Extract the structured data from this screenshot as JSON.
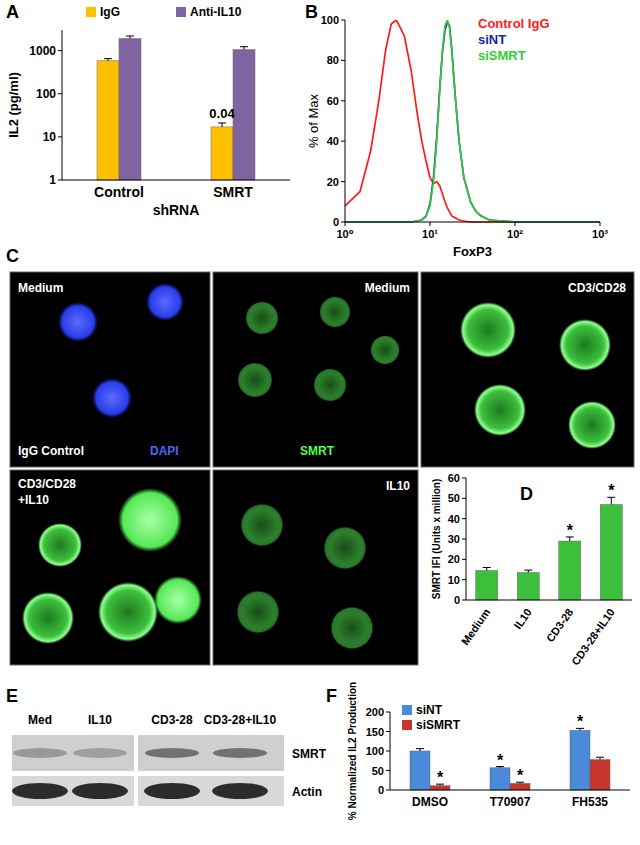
{
  "chart_data": [
    {
      "type": "bar",
      "title": "A",
      "categories": [
        "Control",
        "SMRT"
      ],
      "xlabel": "shRNA",
      "ylabel": "IL2 (pg/ml)",
      "series": [
        {
          "name": "IgG",
          "color": "#ffc000",
          "values": [
            580,
            17
          ],
          "errors": [
            70,
            4
          ]
        },
        {
          "name": "Anti-IL10",
          "color": "#8064a2",
          "values": [
            1900,
            1050
          ],
          "errors": [
            280,
            180
          ]
        }
      ],
      "log": "y",
      "ylim": [
        1,
        3000
      ],
      "yticks": [
        1,
        10,
        100,
        1000
      ],
      "legend": "top",
      "annotations": [
        {
          "series": 0,
          "index": 1,
          "text": "0.04"
        }
      ]
    },
    {
      "type": "line",
      "title": "B",
      "xlabel": "FoxP3",
      "ylabel": "% of Max",
      "x": [
        1,
        1.5,
        2,
        2.5,
        3,
        3.5,
        4,
        4.5,
        5,
        6,
        7,
        8,
        9,
        10,
        11,
        12,
        13,
        14,
        15,
        16,
        17,
        18,
        20,
        22,
        25,
        30,
        35,
        40,
        50,
        70,
        100,
        200,
        1000
      ],
      "series": [
        {
          "name": "Control IgG",
          "color": "#ff1a1a",
          "values": [
            8,
            15,
            35,
            60,
            85,
            98,
            100,
            96,
            92,
            75,
            55,
            40,
            30,
            22,
            19,
            20,
            18,
            14,
            10,
            7,
            5,
            3,
            2,
            1,
            0.5,
            0,
            0,
            0,
            0,
            0,
            0,
            0,
            0
          ]
        },
        {
          "name": "siNT",
          "color": "#1c1cb0",
          "values": [
            0,
            0,
            0,
            0,
            0,
            0,
            0,
            0,
            0,
            0,
            0.5,
            1,
            3,
            9,
            22,
            42,
            66,
            84,
            95,
            99,
            97,
            86,
            60,
            40,
            22,
            10,
            5,
            3,
            1,
            0.5,
            0,
            0,
            0
          ]
        },
        {
          "name": "siSMRT",
          "color": "#33cc33",
          "values": [
            0,
            0,
            0,
            0,
            0,
            0,
            0,
            0,
            0,
            0,
            0.5,
            1,
            3,
            8,
            20,
            40,
            65,
            85,
            97,
            100,
            96,
            85,
            60,
            40,
            22,
            10,
            5,
            3,
            1,
            0.5,
            0,
            0,
            0
          ]
        }
      ],
      "log": "x",
      "xlim": [
        1,
        1000
      ],
      "xticks": [
        {
          "value": 1,
          "label": "10⁰"
        },
        {
          "value": 10,
          "label": "10¹"
        },
        {
          "value": 100,
          "label": "10²"
        },
        {
          "value": 1000,
          "label": "10³"
        }
      ],
      "ylim": [
        0,
        100
      ],
      "yticks": [
        0,
        20,
        40,
        60,
        80,
        100
      ],
      "legend": "top-right"
    },
    {
      "type": "bar",
      "title": "D",
      "categories": [
        "Medium",
        "IL10",
        "CD3-28",
        "CD3-28+IL10"
      ],
      "values": [
        14.5,
        13.5,
        29,
        47
      ],
      "errors": [
        1.5,
        1.2,
        2,
        3.5
      ],
      "color": "#3cc03c",
      "ylabel": "SMRT IFI (Units x million)",
      "ylim": [
        0,
        60
      ],
      "yticks": [
        0,
        10,
        20,
        30,
        40,
        50,
        60
      ],
      "annotations": [
        {
          "index": 2,
          "text": "*"
        },
        {
          "index": 3,
          "text": "*"
        }
      ]
    },
    {
      "type": "bar",
      "title": "F",
      "categories": [
        "DMSO",
        "T70907",
        "FH535"
      ],
      "series": [
        {
          "name": "siNT",
          "color": "#4a8ad8",
          "values": [
            100,
            57,
            153
          ],
          "errors": [
            6,
            3,
            5
          ]
        },
        {
          "name": "siSMRT",
          "color": "#c8352b",
          "values": [
            11,
            17,
            78
          ],
          "errors": [
            4,
            3,
            6
          ]
        }
      ],
      "ylabel": "% Normalized IL2 Production",
      "ylim": [
        0,
        200
      ],
      "yticks": [
        0,
        50,
        100,
        150,
        200
      ],
      "legend": "top-left",
      "annotations": [
        {
          "series": 1,
          "index": 0,
          "text": "*"
        },
        {
          "series": 0,
          "index": 1,
          "text": "*"
        },
        {
          "series": 1,
          "index": 1,
          "text": "*"
        },
        {
          "series": 0,
          "index": 2,
          "text": "*"
        }
      ]
    }
  ],
  "micrographs": {
    "label": "C",
    "panels": [
      {
        "texts": [
          "Medium",
          "IgG Control",
          "DAPI"
        ]
      },
      {
        "texts": [
          "Medium",
          "SMRT"
        ]
      },
      {
        "texts": [
          "CD3/CD28"
        ]
      },
      {
        "texts": [
          "CD3/CD28",
          "+IL10"
        ]
      },
      {
        "texts": [
          "IL10"
        ]
      }
    ]
  },
  "western_blot": {
    "label": "E",
    "lanes": [
      "Med",
      "IL10",
      "CD3-28",
      "CD3-28+IL10"
    ],
    "rows": [
      "SMRT",
      "Actin"
    ]
  }
}
